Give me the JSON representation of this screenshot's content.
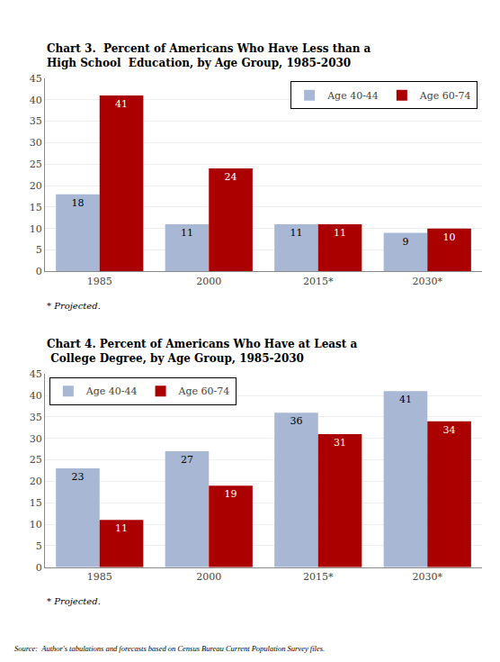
{
  "chart_data": [
    {
      "type": "bar",
      "title": "Chart 3.  Percent of Americans Who Have Less than a\nHigh School  Education, by Age Group, 1985-2030",
      "categories": [
        "1985",
        "2000",
        "2015*",
        "2030*"
      ],
      "series": [
        {
          "name": "Age 40-44",
          "color": "#a8b8d4",
          "values": [
            18,
            11,
            11,
            9
          ]
        },
        {
          "name": "Age 60-74",
          "color": "#aa0000",
          "values": [
            41,
            24,
            11,
            10
          ]
        }
      ],
      "ylim": [
        0,
        45
      ],
      "yticks": [
        0,
        5,
        10,
        15,
        20,
        25,
        30,
        35,
        40,
        45
      ],
      "grid": true,
      "legend": "upper right",
      "data_labels": true,
      "annotations": [
        "* Projected."
      ]
    },
    {
      "type": "bar",
      "title": "Chart 4. Percent of Americans Who Have at Least a\n College Degree, by Age Group, 1985-2030",
      "categories": [
        "1985",
        "2000",
        "2015*",
        "2030*"
      ],
      "series": [
        {
          "name": "Age 40-44",
          "color": "#a8b8d4",
          "values": [
            23,
            27,
            36,
            41
          ]
        },
        {
          "name": "Age 60-74",
          "color": "#aa0000",
          "values": [
            11,
            19,
            31,
            34
          ]
        }
      ],
      "ylim": [
        0,
        45
      ],
      "yticks": [
        0,
        5,
        10,
        15,
        20,
        25,
        30,
        35,
        40,
        45
      ],
      "grid": true,
      "legend": "upper left",
      "data_labels": true,
      "annotations": [
        "* Projected.",
        "Source:  Author's tabulations and forecasts based on Census Bureau Current Population Survey files."
      ]
    }
  ]
}
